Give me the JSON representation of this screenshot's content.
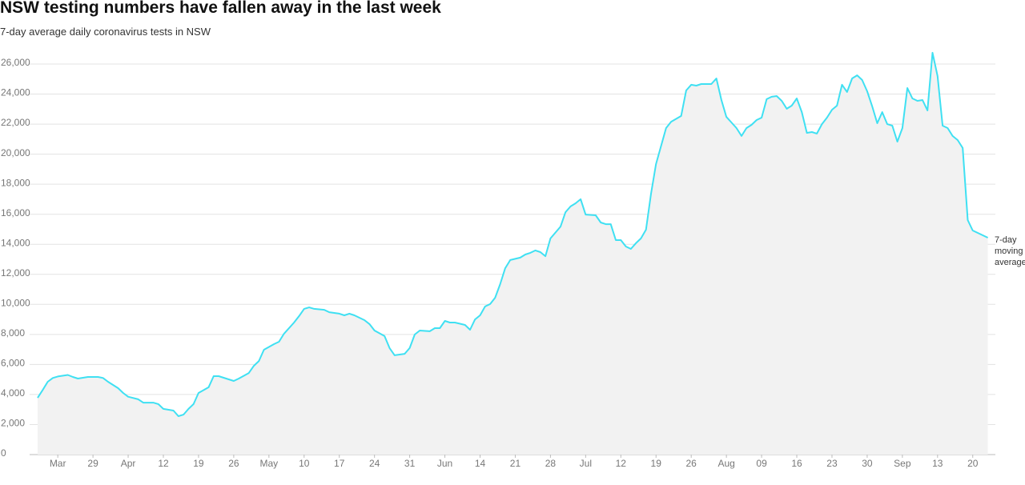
{
  "chart_data": {
    "type": "area",
    "title": "NSW testing numbers have fallen away in the last week",
    "subtitle": "7-day average daily coronavirus tests in NSW",
    "annotation": "7-day moving average",
    "series": [
      {
        "name": "7-day moving average",
        "color": "#3fe0f2",
        "fill": "#f2f2f2",
        "x": [
          -4,
          -3,
          -2,
          -1,
          0,
          2,
          3,
          4,
          6,
          8,
          9,
          10,
          12,
          13,
          14,
          16,
          17,
          19,
          20,
          21,
          23,
          24,
          25,
          26,
          27,
          28,
          30,
          31,
          32,
          34,
          35,
          36,
          38,
          39,
          40,
          41,
          43,
          44,
          45,
          47,
          48,
          49,
          50,
          51,
          53,
          54,
          55,
          56,
          57,
          58,
          59,
          61,
          62,
          63,
          65,
          66,
          67,
          69,
          70,
          71,
          72,
          74,
          75,
          76,
          77,
          78,
          79,
          81,
          82,
          83,
          84,
          85,
          86,
          87,
          88,
          89,
          90,
          92,
          93,
          94,
          95,
          96,
          97,
          98,
          100,
          101,
          102,
          103,
          104,
          105,
          107,
          108,
          109,
          110,
          111,
          112,
          113,
          114,
          115,
          116,
          117,
          118,
          119,
          121,
          122,
          124,
          125,
          126,
          127,
          128,
          130,
          131,
          132,
          133,
          134,
          135,
          136,
          137,
          138,
          139,
          140,
          141,
          142,
          143,
          144,
          145,
          146,
          147,
          148,
          149,
          150,
          151,
          152,
          153,
          154,
          155,
          156,
          157,
          158,
          159,
          160,
          161,
          162,
          163,
          164,
          165,
          166,
          167,
          168,
          169,
          170,
          171,
          172,
          173,
          174,
          175,
          176,
          177,
          178,
          179,
          180,
          181,
          182,
          183,
          184,
          185
        ],
        "values": [
          3780,
          4300,
          4850,
          5100,
          5200,
          5300,
          5170,
          5060,
          5170,
          5170,
          5100,
          4850,
          4420,
          4100,
          3850,
          3680,
          3460,
          3460,
          3360,
          3040,
          2930,
          2560,
          2660,
          3040,
          3360,
          4100,
          4480,
          5220,
          5220,
          5010,
          4900,
          5060,
          5430,
          5910,
          6230,
          6980,
          7350,
          7510,
          8050,
          8790,
          9220,
          9700,
          9800,
          9700,
          9640,
          9480,
          9430,
          9380,
          9270,
          9380,
          9270,
          8950,
          8690,
          8260,
          7890,
          7090,
          6610,
          6710,
          7090,
          7990,
          8260,
          8210,
          8420,
          8420,
          8900,
          8790,
          8790,
          8630,
          8310,
          9000,
          9270,
          9860,
          10020,
          10440,
          11350,
          12410,
          12950,
          13110,
          13320,
          13430,
          13590,
          13480,
          13210,
          14390,
          15180,
          16140,
          16520,
          16730,
          17000,
          15980,
          15930,
          15450,
          15340,
          15340,
          14280,
          14280,
          13850,
          13690,
          14070,
          14390,
          14970,
          17370,
          19340,
          21740,
          22160,
          22540,
          24240,
          24620,
          24560,
          24670,
          24670,
          25040,
          23600,
          22480,
          22110,
          21740,
          21210,
          21740,
          21950,
          22270,
          22430,
          23660,
          23820,
          23870,
          23550,
          23020,
          23230,
          23710,
          22800,
          21420,
          21470,
          21370,
          22000,
          22430,
          22960,
          23230,
          24620,
          24140,
          25040,
          25250,
          24940,
          24190,
          23180,
          22060,
          22800,
          22000,
          21900,
          20830,
          21740,
          24400,
          23710,
          23550,
          23600,
          22910,
          26750,
          25200,
          21900,
          21740,
          21210,
          20940,
          20410,
          15610,
          14920,
          14760,
          14600,
          14440
        ]
      }
    ],
    "xlim": [
      -5.6,
      186.5
    ],
    "xticks": [
      {
        "value": 0,
        "label": "Mar"
      },
      {
        "value": 7,
        "label": "29"
      },
      {
        "value": 14,
        "label": "Apr"
      },
      {
        "value": 21,
        "label": "12"
      },
      {
        "value": 28,
        "label": "19"
      },
      {
        "value": 35,
        "label": "26"
      },
      {
        "value": 42,
        "label": "May"
      },
      {
        "value": 49,
        "label": "10"
      },
      {
        "value": 56,
        "label": "17"
      },
      {
        "value": 63,
        "label": "24"
      },
      {
        "value": 70,
        "label": "31"
      },
      {
        "value": 77,
        "label": "Jun"
      },
      {
        "value": 84,
        "label": "14"
      },
      {
        "value": 91,
        "label": "21"
      },
      {
        "value": 98,
        "label": "28"
      },
      {
        "value": 105,
        "label": "Jul"
      },
      {
        "value": 112,
        "label": "12"
      },
      {
        "value": 119,
        "label": "19"
      },
      {
        "value": 126,
        "label": "26"
      },
      {
        "value": 133,
        "label": "Aug"
      },
      {
        "value": 140,
        "label": "09"
      },
      {
        "value": 147,
        "label": "16"
      },
      {
        "value": 154,
        "label": "23"
      },
      {
        "value": 161,
        "label": "30"
      },
      {
        "value": 168,
        "label": "Sep"
      },
      {
        "value": 175,
        "label": "13"
      },
      {
        "value": 182,
        "label": "20"
      }
    ],
    "ylim": [
      0,
      26000
    ],
    "yticks": [
      0,
      {
        "value": 2000,
        "label": "2,000"
      },
      {
        "value": 4000,
        "label": "4,000"
      },
      {
        "value": 6000,
        "label": "6,000"
      },
      {
        "value": 8000,
        "label": "8,000"
      },
      {
        "value": 10000,
        "label": "10,000"
      },
      {
        "value": 12000,
        "label": "12,000"
      },
      {
        "value": 14000,
        "label": "14,000"
      },
      {
        "value": 16000,
        "label": "16,000"
      },
      {
        "value": 18000,
        "label": "18,000"
      },
      {
        "value": 20000,
        "label": "20,000"
      },
      {
        "value": 22000,
        "label": "22,000"
      },
      {
        "value": 24000,
        "label": "24,000"
      },
      {
        "value": 26000,
        "label": "26,000"
      }
    ],
    "grid": true
  }
}
